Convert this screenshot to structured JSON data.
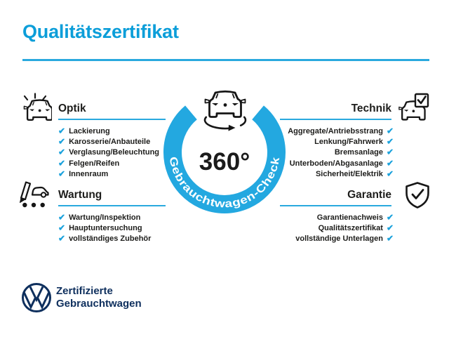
{
  "colors": {
    "accent_blue": "#0c9ed9",
    "ring_blue": "#23a8e0",
    "underline_blue": "#2aa9de",
    "text_dark": "#1d1d1b",
    "brand_navy": "#0e2f5d"
  },
  "header": {
    "title": "Qualitätszertifikat"
  },
  "center": {
    "degree_label": "360°",
    "ring_label": "Gebrauchtwagen-Check",
    "icon": "car-rotate-icon"
  },
  "sections": [
    {
      "id": "optik",
      "title": "Optik",
      "icon": "car-shine-icon",
      "align": "left",
      "items": [
        "Lackierung",
        "Karosserie/Anbauteile",
        "Verglasung/Beleuchtung",
        "Felgen/Reifen",
        "Innenraum"
      ]
    },
    {
      "id": "technik",
      "title": "Technik",
      "icon": "car-checkbox-icon",
      "align": "right",
      "items": [
        "Aggregate/Antriebsstrang",
        "Lenkung/Fahrwerk",
        "Bremsanlage",
        "Unterboden/Abgasanlage",
        "Sicherheit/Elektrik"
      ]
    },
    {
      "id": "wartung",
      "title": "Wartung",
      "icon": "service-checklist-icon",
      "align": "left",
      "items": [
        "Wartung/Inspektion",
        "Hauptuntersuchung",
        "vollständiges Zubehör"
      ]
    },
    {
      "id": "garantie",
      "title": "Garantie",
      "icon": "shield-check-icon",
      "align": "right",
      "items": [
        "Garantienachweis",
        "Qualitätszertifikat",
        "vollständige Unterlagen"
      ]
    }
  ],
  "footer": {
    "logo": "vw-logo",
    "brand_line1": "Zertifizierte",
    "brand_line2": "Gebrauchtwagen"
  },
  "check_glyph": "✔"
}
